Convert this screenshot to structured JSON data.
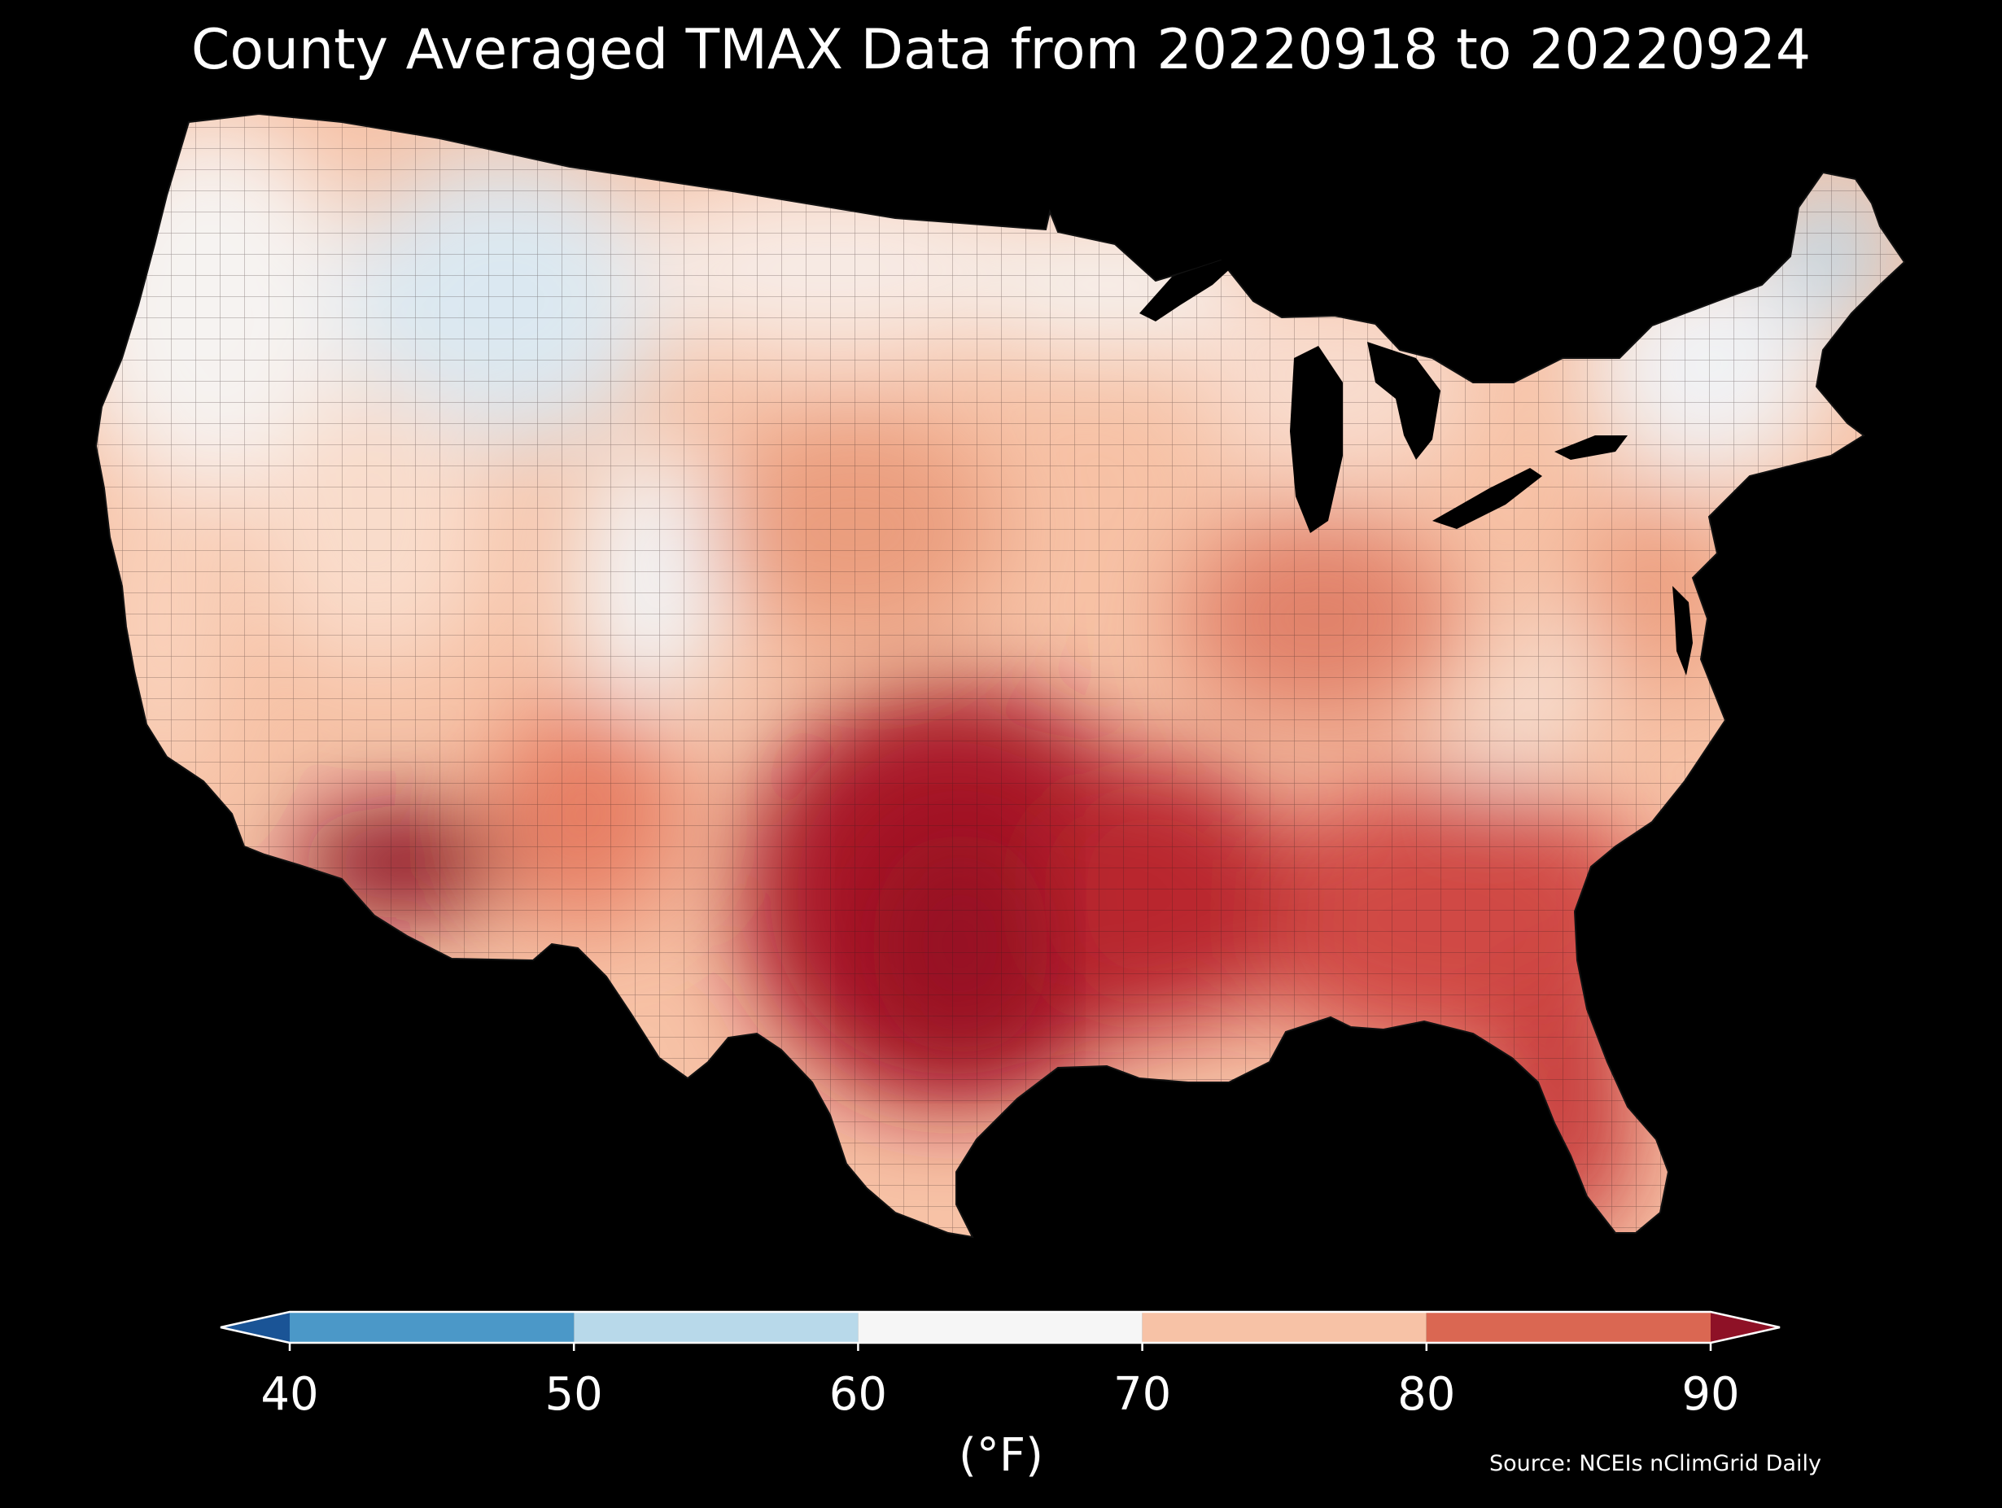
{
  "title": "County Averaged TMAX Data from 20220918 to 20220924",
  "map": {
    "region": "Contiguous United States",
    "background_color": "#000000",
    "water_color": "#000000",
    "county_border_color": "#1a1a1a",
    "temperature_field": [
      {
        "region": "Pacific Northwest",
        "value_f": 62
      },
      {
        "region": "Northern Rockies",
        "value_f": 58
      },
      {
        "region": "Northern Plains",
        "value_f": 66
      },
      {
        "region": "Upper Midwest",
        "value_f": 66
      },
      {
        "region": "Great Lakes",
        "value_f": 68
      },
      {
        "region": "Northeast",
        "value_f": 63
      },
      {
        "region": "Maine",
        "value_f": 56
      },
      {
        "region": "California coast",
        "value_f": 70
      },
      {
        "region": "Great Basin",
        "value_f": 72
      },
      {
        "region": "Colorado Rockies",
        "value_f": 62
      },
      {
        "region": "Central Plains",
        "value_f": 79
      },
      {
        "region": "Mid-Atlantic",
        "value_f": 78
      },
      {
        "region": "Appalachians",
        "value_f": 70
      },
      {
        "region": "Ohio Valley",
        "value_f": 80
      },
      {
        "region": "Southeast",
        "value_f": 84
      },
      {
        "region": "Florida",
        "value_f": 86
      },
      {
        "region": "Texas / Oklahoma",
        "value_f": 90
      },
      {
        "region": "Lower Mississippi Valley",
        "value_f": 87
      },
      {
        "region": "Desert Southwest",
        "value_f": 94
      },
      {
        "region": "New Mexico",
        "value_f": 80
      }
    ]
  },
  "colorbar": {
    "ticks": [
      "40",
      "50",
      "60",
      "70",
      "80",
      "90"
    ],
    "unit_label": "(°F)",
    "range": [
      40,
      90
    ],
    "extend": "both",
    "bins": [
      {
        "from": null,
        "to": 40,
        "color": "#1a5496"
      },
      {
        "from": 40,
        "to": 50,
        "color": "#4b98c8"
      },
      {
        "from": 50,
        "to": 60,
        "color": "#b8d9ea"
      },
      {
        "from": 60,
        "to": 70,
        "color": "#f6f6f6"
      },
      {
        "from": 70,
        "to": 80,
        "color": "#f7c2a6"
      },
      {
        "from": 80,
        "to": 90,
        "color": "#da6752"
      },
      {
        "from": 90,
        "to": null,
        "color": "#8e1126"
      }
    ]
  },
  "source": "Source: NCEIs nClimGrid Daily"
}
